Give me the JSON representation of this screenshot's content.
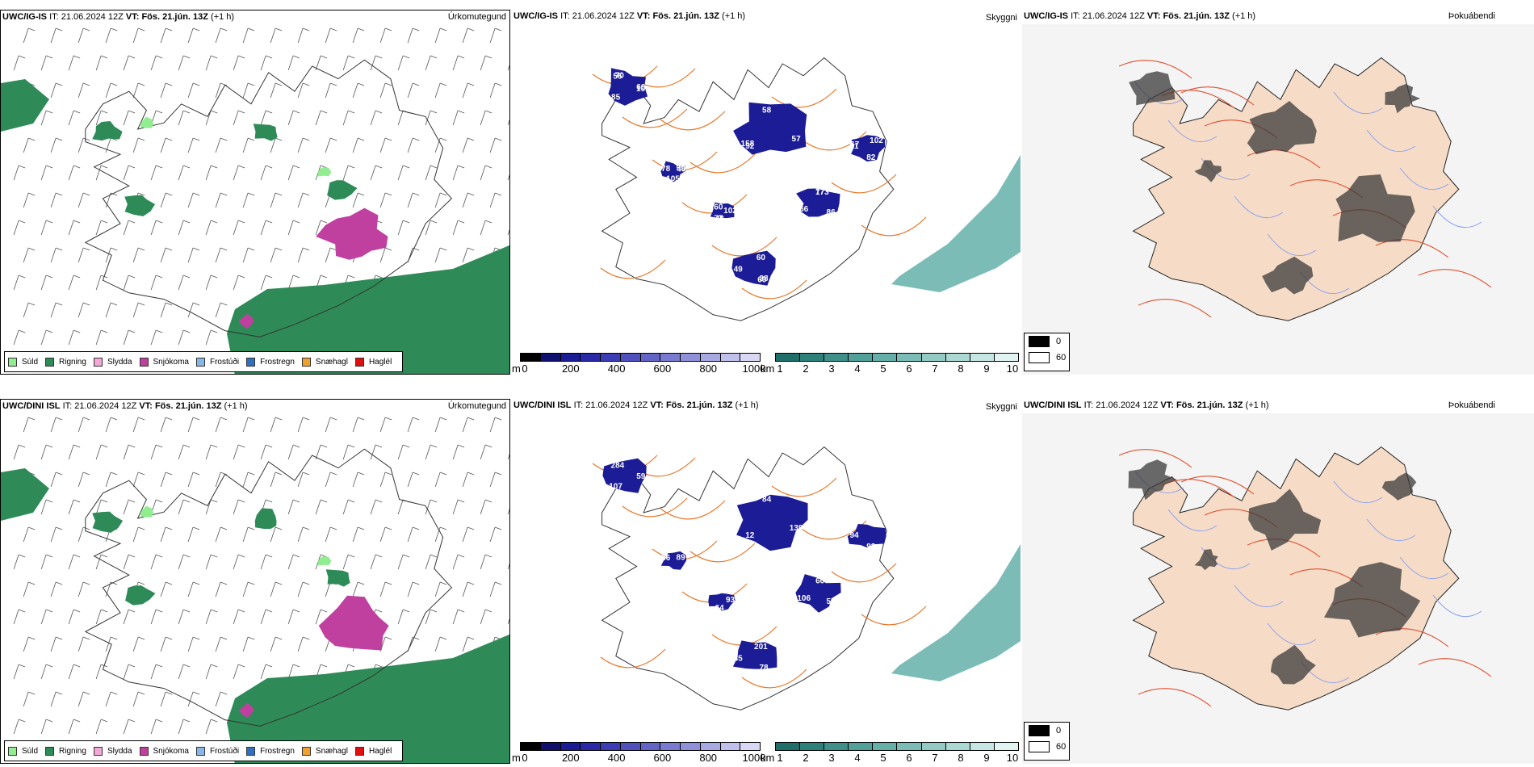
{
  "rows": [
    {
      "model": "UWC/IG-IS",
      "it_label": "IT:",
      "it_value": "21.06.2024 12Z",
      "vt_label": "VT:",
      "vt_value": "Fös. 21.jún. 13Z",
      "lead": "(+1 h)",
      "precip_title": "Úrkomutegund",
      "ceiling_title": "Skyggni",
      "fog_title": "Þokuábendi",
      "ceiling_labels": [
        "66",
        "92",
        "77",
        "38",
        "81",
        "59",
        "48",
        "56",
        "57",
        "66",
        "60",
        "82",
        "78",
        "102",
        "85",
        "58",
        "86",
        "49",
        "102",
        "105",
        "160",
        "10",
        "158",
        "173",
        "60",
        "67",
        "40",
        "77",
        "70"
      ],
      "ceiling_label_pos_hint": "labels over the blue patches"
    },
    {
      "model": "UWC/DINI ISL",
      "it_label": "IT:",
      "it_value": "21.06.2024 12Z",
      "vt_label": "VT:",
      "vt_value": "Fös. 21.jún. 13Z",
      "lead": "(+1 h)",
      "precip_title": "Úrkomutegund",
      "ceiling_title": "Skyggni",
      "fog_title": "Þokuábendi",
      "ceiling_labels": [
        "59",
        "12",
        "60",
        "78",
        "94",
        "89",
        "64",
        "284",
        "139",
        "106",
        "201",
        "93",
        "86",
        "93",
        "107",
        "84",
        "55",
        "35"
      ],
      "ceiling_label_pos_hint": "labels over the blue patches"
    }
  ],
  "precip_legend": [
    {
      "label": "Súld",
      "color": "#90ee90"
    },
    {
      "label": "Rigning",
      "color": "#2e8b57"
    },
    {
      "label": "Slydda",
      "color": "#f4a6d7"
    },
    {
      "label": "Snjókoma",
      "color": "#c040a0"
    },
    {
      "label": "Frostúði",
      "color": "#87b7e8"
    },
    {
      "label": "Frostregn",
      "color": "#3070c0"
    },
    {
      "label": "Snæhagl",
      "color": "#f0a030"
    },
    {
      "label": "Haglél",
      "color": "#e01010"
    }
  ],
  "ceiling_scale": {
    "unit": "m",
    "ticks": [
      "0",
      "200",
      "400",
      "600",
      "800",
      "1000"
    ],
    "colors": [
      "#000000",
      "#101070",
      "#1c1c96",
      "#2a2aa8",
      "#3c3cb4",
      "#5050be",
      "#6464c6",
      "#7a7ad0",
      "#9090da",
      "#a8a8e2",
      "#c0c0ec",
      "#d8d8f4"
    ]
  },
  "visibility_scale": {
    "unit": "km",
    "ticks": [
      "1",
      "2",
      "3",
      "4",
      "5",
      "6",
      "7",
      "8",
      "9",
      "10"
    ],
    "colors": [
      "#1f6f6a",
      "#2e807a",
      "#3f908a",
      "#52a09a",
      "#66aea8",
      "#7cbcb6",
      "#94cac4",
      "#acd8d2",
      "#c6e6e2",
      "#e2f4f2"
    ]
  },
  "cloud_legend": [
    {
      "label": "0",
      "color": "#000000"
    },
    {
      "label": "60",
      "color": "#ffffff"
    }
  ],
  "colors": {
    "rain": "#2e8b57",
    "drizzle": "#90ee90",
    "snow": "#c040a0",
    "roads": "#e8782a",
    "land_fog": "#f6dcc6",
    "rivers": "#8ca0f0"
  }
}
